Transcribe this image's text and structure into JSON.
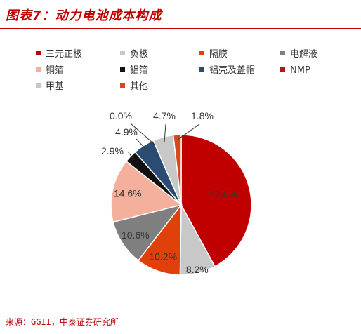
{
  "figure": {
    "title": "图表7：动力电池成本构成",
    "source": "来源：GGII，中泰证券研究所"
  },
  "chart_data": {
    "type": "pie",
    "title": "",
    "legend_placement": "top",
    "slices": [
      {
        "name": "三元正极",
        "value": 42.0,
        "label": "42.0%",
        "color": "#c00000"
      },
      {
        "name": "负极",
        "value": 8.2,
        "label": "8.2%",
        "color": "#c8c8c8"
      },
      {
        "name": "隔膜",
        "value": 10.2,
        "label": "10.2%",
        "color": "#e0400a"
      },
      {
        "name": "电解液",
        "value": 10.6,
        "label": "10.6%",
        "color": "#7f7f7f"
      },
      {
        "name": "铜箔",
        "value": 14.6,
        "label": "14.6%",
        "color": "#f4b09c"
      },
      {
        "name": "铝箔",
        "value": 2.9,
        "label": "2.9%",
        "color": "#111111"
      },
      {
        "name": "铝壳及盖帽",
        "value": 4.9,
        "label": "4.9%",
        "color": "#2b4c72"
      },
      {
        "name": "NMP",
        "value": 0.0,
        "label": "0.0%",
        "color": "#b01818"
      },
      {
        "name": "甲基",
        "value": 4.7,
        "label": "4.7%",
        "color": "#c8c8c8"
      },
      {
        "name": "其他",
        "value": 1.8,
        "label": "1.8%",
        "color": "#d8481a"
      }
    ]
  }
}
